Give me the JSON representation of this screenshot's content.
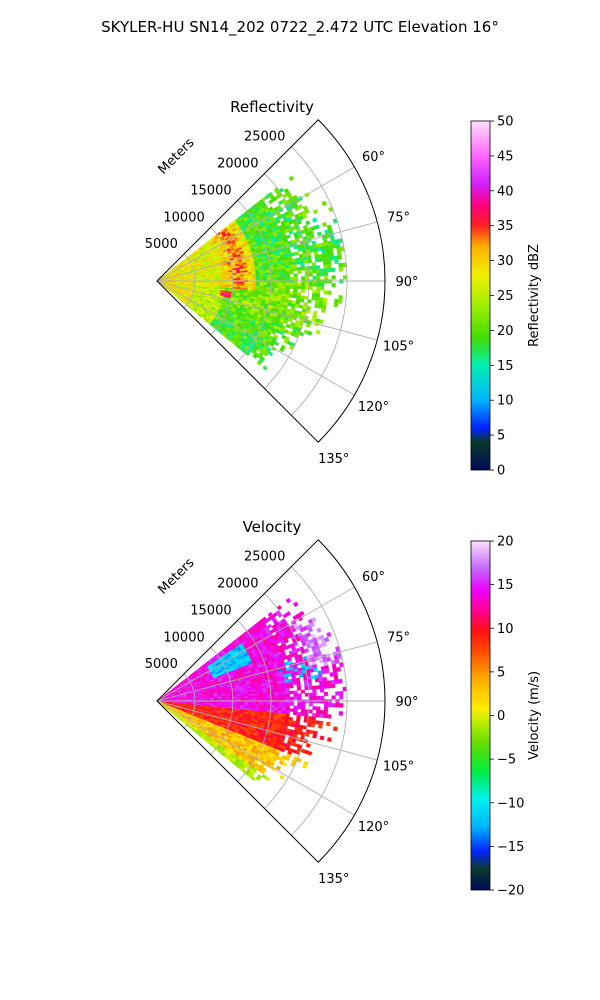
{
  "figure": {
    "suptitle": "SKYLER-HU  SN14_202  0722_2.472 UTC Elevation 16°"
  },
  "colors": {
    "grid": "#b0b0b0",
    "frame": "#000000"
  },
  "chart_data": [
    {
      "type": "heatmap",
      "subtype": "polar-sector",
      "title": "Reflectivity",
      "radial_label": "Meters",
      "radial_ticks": [
        5000,
        10000,
        15000,
        20000,
        25000
      ],
      "radial_range": [
        0,
        30000
      ],
      "angle_ticks": [
        "60°",
        "75°",
        "90°",
        "105°",
        "120°",
        "135°"
      ],
      "angle_range_deg": [
        45,
        135
      ],
      "colorbar": {
        "label": "Reflectivity dBZ",
        "range": [
          0,
          50
        ],
        "ticks": [
          "0",
          "5",
          "10",
          "15",
          "20",
          "25",
          "30",
          "35",
          "40",
          "45",
          "50"
        ]
      },
      "data_extent_m": 25000,
      "description_regions": [
        {
          "az_deg": [
            52,
            128
          ],
          "range_m": [
            0,
            8000
          ],
          "value_dbz": 27
        },
        {
          "az_deg": [
            55,
            95
          ],
          "range_m": [
            8000,
            14000
          ],
          "value_dbz": 30
        },
        {
          "az_deg": [
            60,
            80
          ],
          "range_m": [
            14000,
            25000
          ],
          "value_dbz": 18
        },
        {
          "az_deg": [
            95,
            125
          ],
          "range_m": [
            8000,
            22000
          ],
          "value_dbz": 22
        }
      ]
    },
    {
      "type": "heatmap",
      "subtype": "polar-sector",
      "title": "Velocity",
      "radial_label": "Meters",
      "radial_ticks": [
        5000,
        10000,
        15000,
        20000,
        25000
      ],
      "radial_range": [
        0,
        30000
      ],
      "angle_ticks": [
        "60°",
        "75°",
        "90°",
        "105°",
        "120°",
        "135°"
      ],
      "angle_range_deg": [
        45,
        135
      ],
      "colorbar": {
        "label": "Velocity (m/s)",
        "range": [
          -20,
          20
        ],
        "ticks": [
          "−20",
          "−15",
          "−10",
          "−5",
          "0",
          "5",
          "10",
          "15",
          "20"
        ]
      },
      "data_extent_m": 25000,
      "description_regions": [
        {
          "az_deg": [
            52,
            98
          ],
          "range_m": [
            0,
            25000
          ],
          "value_ms": 14
        },
        {
          "az_deg": [
            98,
            112
          ],
          "range_m": [
            0,
            22000
          ],
          "value_ms": 9
        },
        {
          "az_deg": [
            112,
            130
          ],
          "range_m": [
            0,
            20000
          ],
          "value_ms": 2
        },
        {
          "az_deg": [
            56,
            66
          ],
          "range_m": [
            8000,
            14000
          ],
          "value_ms": -12
        }
      ]
    }
  ]
}
